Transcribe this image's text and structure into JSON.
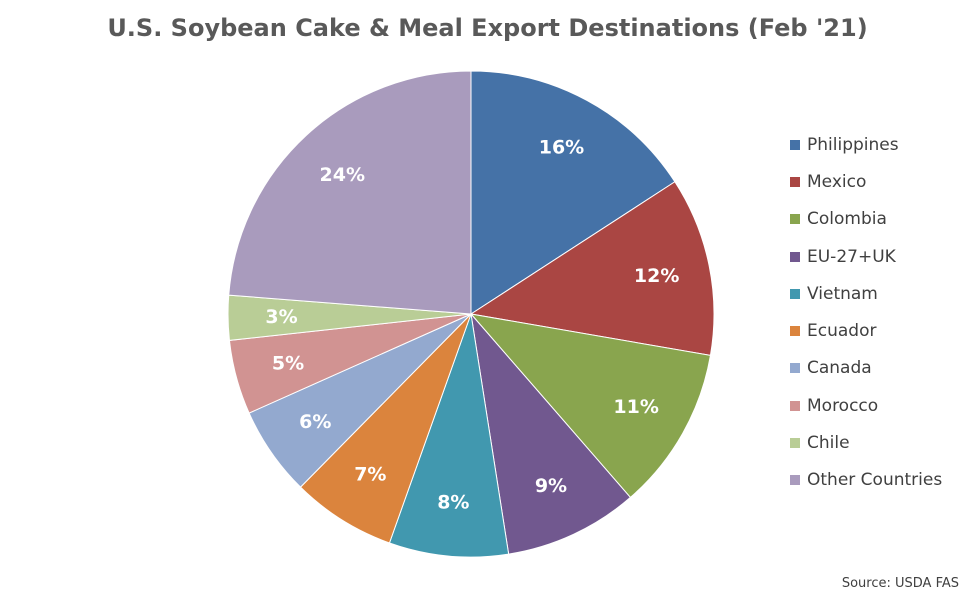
{
  "chart_data": {
    "type": "pie",
    "title": "U.S. Soybean Cake & Meal Export Destinations (Feb '21)",
    "slices": [
      {
        "name": "Philippines",
        "value": 16,
        "label": "16%",
        "color": "#4572A7"
      },
      {
        "name": "Mexico",
        "value": 12,
        "label": "12%",
        "color": "#AA4643"
      },
      {
        "name": "Colombia",
        "value": 11,
        "label": "11%",
        "color": "#89A54E"
      },
      {
        "name": "EU-27+UK",
        "value": 9,
        "label": "9%",
        "color": "#71588F"
      },
      {
        "name": "Vietnam",
        "value": 8,
        "label": "8%",
        "color": "#4198AF"
      },
      {
        "name": "Ecuador",
        "value": 7,
        "label": "7%",
        "color": "#DB843D"
      },
      {
        "name": "Canada",
        "value": 6,
        "label": "6%",
        "color": "#93A9CF"
      },
      {
        "name": "Morocco",
        "value": 5,
        "label": "5%",
        "color": "#D19392"
      },
      {
        "name": "Chile",
        "value": 3,
        "label": "3%",
        "color": "#B9CD96"
      },
      {
        "name": "Other Countries",
        "value": 24,
        "label": "24%",
        "color": "#A99BBD"
      }
    ],
    "legend_position": "right",
    "source": "Source: USDA FAS"
  }
}
